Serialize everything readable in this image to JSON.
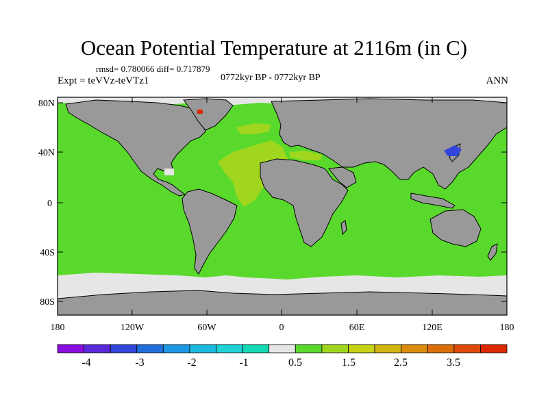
{
  "title": "Ocean Potential Temperature at 2116m (in C)",
  "stats_line": "rmsd= 0.780066 diff= 0.717879",
  "experiment": "Expt = teVVz-teVTz1",
  "period": "0772kyr BP - 0772kyr BP",
  "season": "ANN",
  "y_labels": [
    "80N",
    "40N",
    "0",
    "40S",
    "80S"
  ],
  "x_labels": [
    "180",
    "120W",
    "60W",
    "0",
    "60E",
    "120E",
    "180"
  ],
  "colorbar": {
    "labels": [
      "-4",
      "-3",
      "-2",
      "-1",
      "0.5",
      "1.5",
      "2.5",
      "3.5"
    ],
    "colors": [
      "#8a0ee0",
      "#5a28d8",
      "#3246dc",
      "#1f6edc",
      "#1c96e6",
      "#1cbadf",
      "#20d2d6",
      "#14d8b4",
      "#e6e6e6",
      "#5ad92d",
      "#a0d71e",
      "#c8d214",
      "#d2b40f",
      "#dc8c0a",
      "#dc6e0a",
      "#e04a0a",
      "#dc2800"
    ]
  },
  "colors": {
    "land": "#999999",
    "ocean_main": "#5ad92d",
    "atlantic_warm": "#a0d71e",
    "ice_gray": "#e6e6e6",
    "pacific_cold": "#3246dc",
    "hotspot": "#dc2800"
  }
}
